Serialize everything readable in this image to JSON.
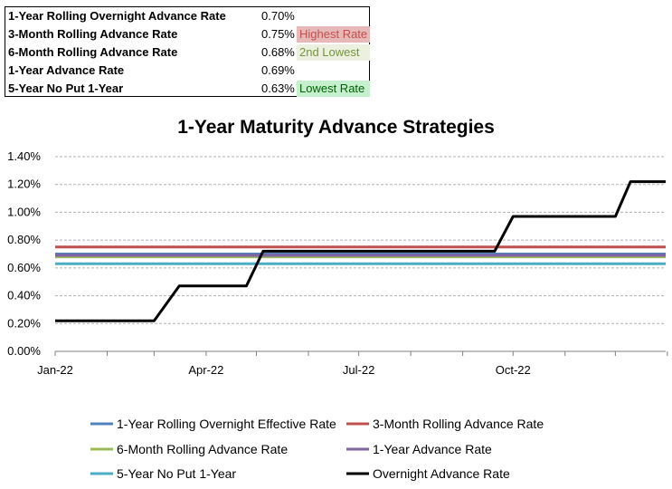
{
  "summary": {
    "rows": [
      {
        "label": "1-Year Rolling Overnight Advance Rate",
        "value": "0.70%",
        "note": "",
        "note_bg": "",
        "note_color": ""
      },
      {
        "label": "3-Month Rolling Advance Rate",
        "value": "0.75%",
        "note": "Highest Rate",
        "note_bg": "#e6b8b7",
        "note_color": "#c0504d"
      },
      {
        "label": "6-Month Rolling Advance Rate",
        "value": "0.68%",
        "note": "2nd Lowest",
        "note_bg": "#ebf1de",
        "note_color": "#76933c"
      },
      {
        "label": "1-Year Advance Rate",
        "value": "0.69%",
        "note": "",
        "note_bg": "",
        "note_color": ""
      },
      {
        "label": "5-Year No Put 1-Year",
        "value": "0.63%",
        "note": "Lowest Rate",
        "note_bg": "#c6efce",
        "note_color": "#006100"
      }
    ]
  },
  "chart_data": {
    "type": "line",
    "title": "1-Year Maturity Advance Strategies",
    "xlabel": "",
    "ylabel": "",
    "x_ticks": [
      "Jan-22",
      "Apr-22",
      "Jul-22",
      "Oct-22"
    ],
    "y_ticks": [
      "0.00%",
      "0.20%",
      "0.40%",
      "0.60%",
      "0.80%",
      "1.00%",
      "1.20%",
      "1.40%"
    ],
    "ylim": [
      0,
      1.4
    ],
    "y_unit": "%",
    "grid": "horizontal dashed",
    "legend_position": "bottom",
    "x_dates": [
      "2022-01-01",
      "2022-03-01",
      "2022-03-16",
      "2022-04-25",
      "2022-05-05",
      "2022-09-20",
      "2022-10-01",
      "2022-12-01",
      "2022-12-10",
      "2022-12-31"
    ],
    "series": [
      {
        "name": "1-Year Rolling Overnight Effective Rate",
        "color": "#4f81bd",
        "values": [
          0.7,
          0.7,
          0.7,
          0.7,
          0.7,
          0.7,
          0.7,
          0.7,
          0.7,
          0.7
        ]
      },
      {
        "name": "3-Month Rolling Advance Rate",
        "color": "#c0504d",
        "values": [
          0.75,
          0.75,
          0.75,
          0.75,
          0.75,
          0.75,
          0.75,
          0.75,
          0.75,
          0.75
        ]
      },
      {
        "name": "6-Month Rolling Advance Rate",
        "color": "#9bbb59",
        "values": [
          0.68,
          0.68,
          0.68,
          0.68,
          0.68,
          0.68,
          0.68,
          0.68,
          0.68,
          0.68
        ]
      },
      {
        "name": "1-Year Advance Rate",
        "color": "#8064a2",
        "values": [
          0.69,
          0.69,
          0.69,
          0.69,
          0.69,
          0.69,
          0.69,
          0.69,
          0.69,
          0.69
        ]
      },
      {
        "name": "5-Year No Put 1-Year",
        "color": "#4bacc6",
        "values": [
          0.63,
          0.63,
          0.63,
          0.63,
          0.63,
          0.63,
          0.63,
          0.63,
          0.63,
          0.63
        ]
      },
      {
        "name": "Overnight Advance Rate",
        "color": "#000000",
        "values": [
          0.22,
          0.22,
          0.47,
          0.47,
          0.72,
          0.72,
          0.97,
          0.97,
          1.22,
          1.22
        ]
      }
    ]
  }
}
